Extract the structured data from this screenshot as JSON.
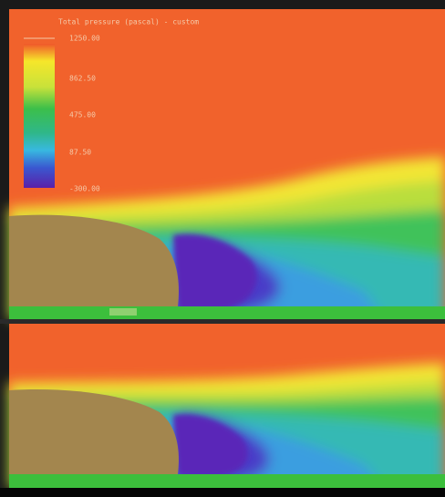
{
  "legend": {
    "title": "Total pressure (pascal) - custom",
    "labels": [
      "1250.00",
      "862.50",
      "475.00",
      "87.50",
      "-300.00"
    ]
  }
}
